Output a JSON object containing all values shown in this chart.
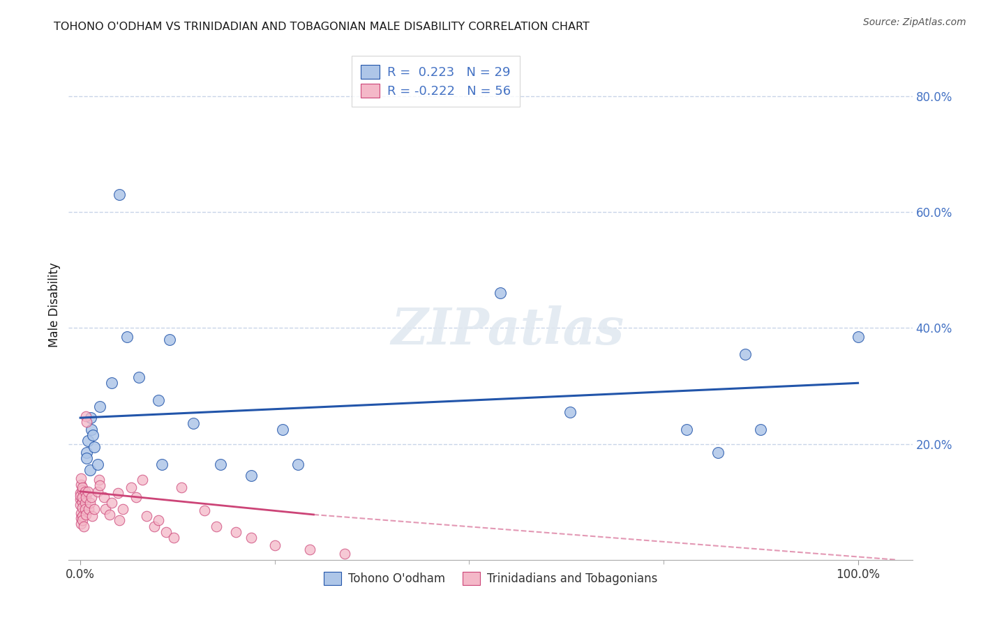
{
  "title": "TOHONO O'ODHAM VS TRINIDADIAN AND TOBAGONIAN MALE DISABILITY CORRELATION CHART",
  "source": "Source: ZipAtlas.com",
  "ylabel": "Male Disability",
  "legend_label1": "Tohono O'odham",
  "legend_label2": "Trinidadians and Tobagonians",
  "r1": 0.223,
  "n1": 29,
  "r2": -0.222,
  "n2": 56,
  "blue_color": "#aec6e8",
  "pink_color": "#f4b8c8",
  "blue_line_color": "#2255aa",
  "pink_line_color": "#cc4477",
  "blue_scatter": [
    [
      0.008,
      0.185
    ],
    [
      0.008,
      0.175
    ],
    [
      0.01,
      0.205
    ],
    [
      0.012,
      0.155
    ],
    [
      0.013,
      0.245
    ],
    [
      0.014,
      0.225
    ],
    [
      0.016,
      0.215
    ],
    [
      0.018,
      0.195
    ],
    [
      0.022,
      0.165
    ],
    [
      0.025,
      0.265
    ],
    [
      0.04,
      0.305
    ],
    [
      0.05,
      0.63
    ],
    [
      0.06,
      0.385
    ],
    [
      0.075,
      0.315
    ],
    [
      0.1,
      0.275
    ],
    [
      0.105,
      0.165
    ],
    [
      0.115,
      0.38
    ],
    [
      0.145,
      0.235
    ],
    [
      0.18,
      0.165
    ],
    [
      0.22,
      0.145
    ],
    [
      0.26,
      0.225
    ],
    [
      0.28,
      0.165
    ],
    [
      0.54,
      0.46
    ],
    [
      0.63,
      0.255
    ],
    [
      0.78,
      0.225
    ],
    [
      0.82,
      0.185
    ],
    [
      0.855,
      0.355
    ],
    [
      0.875,
      0.225
    ],
    [
      1.0,
      0.385
    ]
  ],
  "pink_scatter": [
    [
      0.0,
      0.115
    ],
    [
      0.0,
      0.105
    ],
    [
      0.0,
      0.095
    ],
    [
      0.0,
      0.11
    ],
    [
      0.001,
      0.08
    ],
    [
      0.001,
      0.13
    ],
    [
      0.001,
      0.072
    ],
    [
      0.001,
      0.062
    ],
    [
      0.001,
      0.14
    ],
    [
      0.003,
      0.12
    ],
    [
      0.003,
      0.1
    ],
    [
      0.003,
      0.09
    ],
    [
      0.003,
      0.108
    ],
    [
      0.003,
      0.075
    ],
    [
      0.003,
      0.068
    ],
    [
      0.003,
      0.125
    ],
    [
      0.004,
      0.058
    ],
    [
      0.006,
      0.118
    ],
    [
      0.006,
      0.098
    ],
    [
      0.006,
      0.088
    ],
    [
      0.007,
      0.108
    ],
    [
      0.007,
      0.078
    ],
    [
      0.007,
      0.248
    ],
    [
      0.008,
      0.238
    ],
    [
      0.01,
      0.118
    ],
    [
      0.011,
      0.088
    ],
    [
      0.012,
      0.098
    ],
    [
      0.014,
      0.108
    ],
    [
      0.015,
      0.075
    ],
    [
      0.018,
      0.088
    ],
    [
      0.022,
      0.118
    ],
    [
      0.024,
      0.138
    ],
    [
      0.025,
      0.128
    ],
    [
      0.03,
      0.108
    ],
    [
      0.032,
      0.088
    ],
    [
      0.038,
      0.078
    ],
    [
      0.04,
      0.098
    ],
    [
      0.048,
      0.115
    ],
    [
      0.05,
      0.068
    ],
    [
      0.055,
      0.088
    ],
    [
      0.065,
      0.125
    ],
    [
      0.072,
      0.108
    ],
    [
      0.08,
      0.138
    ],
    [
      0.085,
      0.075
    ],
    [
      0.095,
      0.058
    ],
    [
      0.1,
      0.068
    ],
    [
      0.11,
      0.048
    ],
    [
      0.12,
      0.038
    ],
    [
      0.13,
      0.125
    ],
    [
      0.16,
      0.085
    ],
    [
      0.175,
      0.058
    ],
    [
      0.2,
      0.048
    ],
    [
      0.22,
      0.038
    ],
    [
      0.25,
      0.025
    ],
    [
      0.295,
      0.018
    ],
    [
      0.34,
      0.01
    ]
  ],
  "blue_line": {
    "x0": 0.0,
    "y0": 0.245,
    "x1": 1.0,
    "y1": 0.305
  },
  "pink_line_solid": {
    "x0": 0.0,
    "y0": 0.118,
    "x1": 0.3,
    "y1": 0.078
  },
  "pink_line_dashed": {
    "x0": 0.3,
    "y0": 0.078,
    "x1": 1.05,
    "y1": 0.0
  },
  "xlim": [
    -0.015,
    1.07
  ],
  "ylim": [
    0.0,
    0.88
  ],
  "yticks": [
    0.2,
    0.4,
    0.6,
    0.8
  ],
  "ytick_labels": [
    "20.0%",
    "40.0%",
    "60.0%",
    "80.0%"
  ],
  "xticks": [
    0.0,
    1.0
  ],
  "xtick_labels": [
    "0.0%",
    "100.0%"
  ],
  "background_color": "#ffffff",
  "grid_color": "#c8d4e8",
  "title_color": "#1a1a1a",
  "source_color": "#555555",
  "tick_color": "#4472c4",
  "x_tick_color": "#333333"
}
